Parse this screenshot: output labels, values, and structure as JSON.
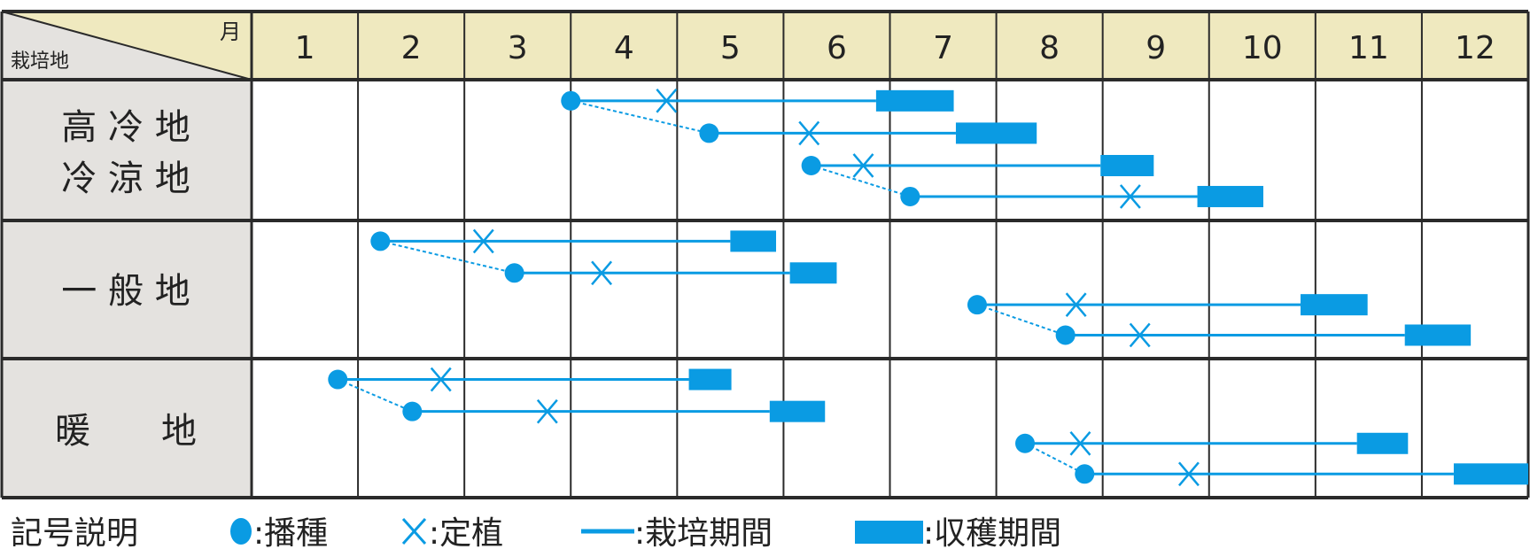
{
  "colors": {
    "accent": "#0a9be3",
    "header_bg": "#efe9bf",
    "label_bg": "#e4e2df",
    "grid": "#2a2a2a"
  },
  "header": {
    "corner_row_label": "栽培地",
    "corner_col_label": "月",
    "months": [
      "1",
      "2",
      "3",
      "4",
      "5",
      "6",
      "7",
      "8",
      "9",
      "10",
      "11",
      "12"
    ]
  },
  "regions": [
    {
      "lines": [
        "高 冷 地",
        "冷 涼 地"
      ],
      "plans": [
        {
          "sow": 4.0,
          "transplant": 4.9,
          "harvest": [
            6.87,
            7.6
          ]
        },
        {
          "sow": 5.3,
          "transplant": 6.24,
          "harvest": [
            7.62,
            8.38
          ]
        },
        {
          "sow": 6.26,
          "transplant": 6.75,
          "harvest": [
            8.98,
            9.48
          ]
        },
        {
          "sow": 7.19,
          "transplant": 9.26,
          "harvest": [
            9.89,
            10.51
          ]
        }
      ]
    },
    {
      "lines": [
        "一 般 地"
      ],
      "plans": [
        {
          "sow": 2.21,
          "transplant": 3.18,
          "harvest": [
            5.5,
            5.93
          ]
        },
        {
          "sow": 3.47,
          "transplant": 4.29,
          "harvest": [
            6.06,
            6.5
          ]
        },
        {
          "sow": 7.82,
          "transplant": 8.75,
          "harvest": [
            10.86,
            11.49
          ]
        },
        {
          "sow": 8.65,
          "transplant": 9.35,
          "harvest": [
            11.84,
            12.46
          ]
        }
      ]
    },
    {
      "lines": [
        "暖　　地"
      ],
      "plans": [
        {
          "sow": 1.81,
          "transplant": 2.78,
          "harvest": [
            5.11,
            5.51
          ]
        },
        {
          "sow": 2.51,
          "transplant": 3.78,
          "harvest": [
            5.87,
            6.39
          ]
        },
        {
          "sow": 8.27,
          "transplant": 8.79,
          "harvest": [
            11.39,
            11.87
          ]
        },
        {
          "sow": 8.83,
          "transplant": 9.81,
          "harvest": [
            12.3,
            13.0
          ]
        }
      ]
    }
  ],
  "legend": {
    "title": "記号説明",
    "sow": ":播種",
    "transplant": ":定植",
    "cultivation": ":栽培期間",
    "harvest": ":収穫期間"
  }
}
